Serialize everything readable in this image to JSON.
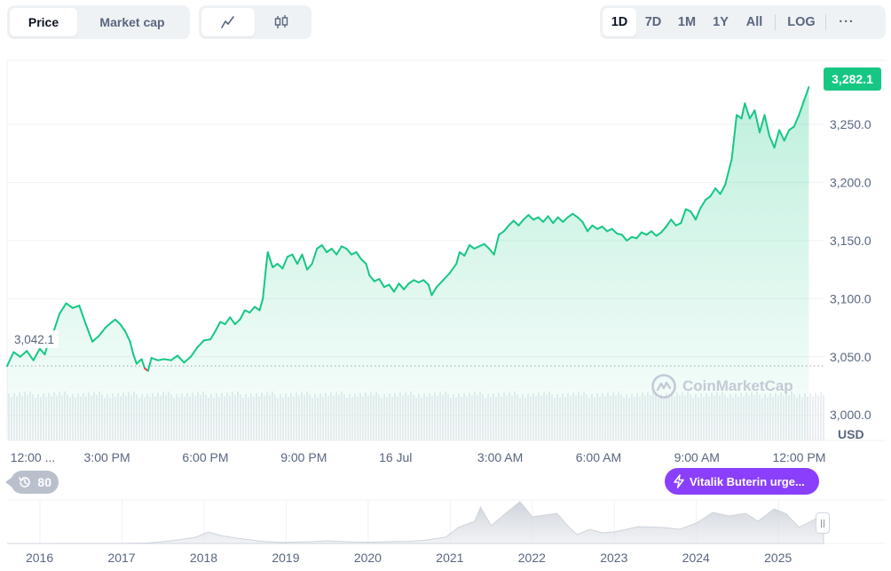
{
  "toolbar": {
    "metric_options": [
      "Price",
      "Market cap"
    ],
    "metric_selected": "Price",
    "chart_types": [
      {
        "name": "line-chart-icon",
        "selected": true
      },
      {
        "name": "candlestick-chart-icon",
        "selected": false
      }
    ],
    "ranges": [
      "1D",
      "7D",
      "1M",
      "1Y",
      "All"
    ],
    "range_selected": "1D",
    "log_label": "LOG",
    "more_label": "···"
  },
  "chart_data": {
    "type": "area",
    "currency_label": "USD",
    "last_value_label": "3,282.1",
    "open_value_label": "3,042.1",
    "open_value": 3042.1,
    "ylim": [
      2978,
      3305
    ],
    "y_ticks": [
      3000.0,
      3050.0,
      3100.0,
      3150.0,
      3200.0,
      3250.0
    ],
    "y_tick_labels": [
      "3,000.0",
      "3,050.0",
      "3,100.0",
      "3,150.0",
      "3,200.0",
      "3,250.0"
    ],
    "x_tick_labels": [
      "12:00 ...",
      "3:00 PM",
      "6:00 PM",
      "9:00 PM",
      "16 Jul",
      "3:00 AM",
      "6:00 AM",
      "9:00 AM",
      "12:00 PM"
    ],
    "x_tick_hours": [
      0,
      3,
      6,
      9,
      12,
      15,
      18,
      21,
      24
    ],
    "x_range_hours": [
      -0.1,
      24.8
    ],
    "series": [
      {
        "color_up": "#16c784",
        "color_down": "#ea3943",
        "points": [
          [
            -0.1,
            3042
          ],
          [
            0.1,
            3054
          ],
          [
            0.3,
            3050
          ],
          [
            0.5,
            3055
          ],
          [
            0.7,
            3047
          ],
          [
            0.9,
            3057
          ],
          [
            1.05,
            3052
          ],
          [
            1.15,
            3062
          ],
          [
            1.3,
            3070
          ],
          [
            1.5,
            3087
          ],
          [
            1.7,
            3096
          ],
          [
            1.9,
            3092
          ],
          [
            2.1,
            3094
          ],
          [
            2.3,
            3078
          ],
          [
            2.5,
            3063
          ],
          [
            2.7,
            3068
          ],
          [
            2.9,
            3075
          ],
          [
            3.1,
            3080
          ],
          [
            3.2,
            3082
          ],
          [
            3.35,
            3078
          ],
          [
            3.5,
            3072
          ],
          [
            3.65,
            3063
          ],
          [
            3.75,
            3052
          ],
          [
            3.85,
            3044
          ],
          [
            4.0,
            3048
          ],
          [
            4.1,
            3040
          ],
          [
            4.2,
            3038
          ],
          [
            4.3,
            3049
          ],
          [
            4.5,
            3047
          ],
          [
            4.7,
            3048
          ],
          [
            4.9,
            3047
          ],
          [
            5.1,
            3051
          ],
          [
            5.3,
            3045
          ],
          [
            5.5,
            3050
          ],
          [
            5.7,
            3058
          ],
          [
            5.9,
            3064
          ],
          [
            6.1,
            3065
          ],
          [
            6.25,
            3072
          ],
          [
            6.4,
            3080
          ],
          [
            6.55,
            3078
          ],
          [
            6.7,
            3084
          ],
          [
            6.85,
            3078
          ],
          [
            7.0,
            3082
          ],
          [
            7.15,
            3090
          ],
          [
            7.3,
            3088
          ],
          [
            7.45,
            3093
          ],
          [
            7.6,
            3090
          ],
          [
            7.7,
            3100
          ],
          [
            7.8,
            3128
          ],
          [
            7.85,
            3140
          ],
          [
            8.0,
            3127
          ],
          [
            8.15,
            3130
          ],
          [
            8.3,
            3126
          ],
          [
            8.45,
            3136
          ],
          [
            8.6,
            3138
          ],
          [
            8.75,
            3130
          ],
          [
            8.9,
            3138
          ],
          [
            9.05,
            3125
          ],
          [
            9.2,
            3130
          ],
          [
            9.35,
            3143
          ],
          [
            9.5,
            3146
          ],
          [
            9.65,
            3140
          ],
          [
            9.8,
            3143
          ],
          [
            9.95,
            3138
          ],
          [
            10.1,
            3145
          ],
          [
            10.25,
            3143
          ],
          [
            10.4,
            3138
          ],
          [
            10.55,
            3140
          ],
          [
            10.7,
            3134
          ],
          [
            10.85,
            3130
          ],
          [
            10.95,
            3120
          ],
          [
            11.1,
            3115
          ],
          [
            11.25,
            3117
          ],
          [
            11.4,
            3110
          ],
          [
            11.55,
            3112
          ],
          [
            11.7,
            3106
          ],
          [
            11.85,
            3113
          ],
          [
            12.0,
            3108
          ],
          [
            12.15,
            3113
          ],
          [
            12.3,
            3116
          ],
          [
            12.45,
            3114
          ],
          [
            12.6,
            3116
          ],
          [
            12.75,
            3112
          ],
          [
            12.85,
            3103
          ],
          [
            13.0,
            3110
          ],
          [
            13.2,
            3116
          ],
          [
            13.4,
            3122
          ],
          [
            13.6,
            3130
          ],
          [
            13.7,
            3140
          ],
          [
            13.85,
            3137
          ],
          [
            14.0,
            3146
          ],
          [
            14.15,
            3143
          ],
          [
            14.3,
            3145
          ],
          [
            14.45,
            3147
          ],
          [
            14.6,
            3143
          ],
          [
            14.75,
            3138
          ],
          [
            14.9,
            3155
          ],
          [
            15.05,
            3158
          ],
          [
            15.2,
            3163
          ],
          [
            15.35,
            3167
          ],
          [
            15.5,
            3163
          ],
          [
            15.65,
            3168
          ],
          [
            15.8,
            3172
          ],
          [
            15.95,
            3168
          ],
          [
            16.1,
            3170
          ],
          [
            16.25,
            3166
          ],
          [
            16.4,
            3171
          ],
          [
            16.55,
            3165
          ],
          [
            16.7,
            3170
          ],
          [
            16.85,
            3166
          ],
          [
            17.0,
            3170
          ],
          [
            17.15,
            3173
          ],
          [
            17.3,
            3170
          ],
          [
            17.45,
            3166
          ],
          [
            17.6,
            3158
          ],
          [
            17.75,
            3163
          ],
          [
            17.9,
            3160
          ],
          [
            18.05,
            3162
          ],
          [
            18.2,
            3158
          ],
          [
            18.35,
            3160
          ],
          [
            18.5,
            3156
          ],
          [
            18.65,
            3155
          ],
          [
            18.8,
            3150
          ],
          [
            18.95,
            3153
          ],
          [
            19.1,
            3152
          ],
          [
            19.25,
            3157
          ],
          [
            19.4,
            3155
          ],
          [
            19.55,
            3158
          ],
          [
            19.7,
            3154
          ],
          [
            19.85,
            3157
          ],
          [
            20.0,
            3162
          ],
          [
            20.15,
            3168
          ],
          [
            20.3,
            3163
          ],
          [
            20.45,
            3165
          ],
          [
            20.6,
            3177
          ],
          [
            20.75,
            3175
          ],
          [
            20.9,
            3168
          ],
          [
            21.05,
            3178
          ],
          [
            21.2,
            3185
          ],
          [
            21.35,
            3188
          ],
          [
            21.5,
            3195
          ],
          [
            21.65,
            3190
          ],
          [
            21.8,
            3198
          ],
          [
            22.0,
            3220
          ],
          [
            22.15,
            3258
          ],
          [
            22.3,
            3255
          ],
          [
            22.4,
            3268
          ],
          [
            22.55,
            3255
          ],
          [
            22.7,
            3262
          ],
          [
            22.85,
            3243
          ],
          [
            23.0,
            3258
          ],
          [
            23.15,
            3240
          ],
          [
            23.3,
            3230
          ],
          [
            23.45,
            3245
          ],
          [
            23.6,
            3236
          ],
          [
            23.75,
            3245
          ],
          [
            23.9,
            3248
          ],
          [
            24.05,
            3258
          ],
          [
            24.2,
            3270
          ],
          [
            24.35,
            3282
          ]
        ]
      }
    ]
  },
  "navigator": {
    "year_labels": [
      "2016",
      "2017",
      "2018",
      "2019",
      "2020",
      "2021",
      "2022",
      "2023",
      "2024",
      "2025"
    ],
    "year_start": 2015.6,
    "year_end": 2025.55,
    "range_max_usd": 4900,
    "price_history": [
      [
        2015.6,
        2
      ],
      [
        2016.0,
        1
      ],
      [
        2016.5,
        12
      ],
      [
        2017.0,
        10
      ],
      [
        2017.3,
        50
      ],
      [
        2017.6,
        300
      ],
      [
        2017.9,
        700
      ],
      [
        2018.05,
        1300
      ],
      [
        2018.2,
        900
      ],
      [
        2018.4,
        600
      ],
      [
        2018.7,
        250
      ],
      [
        2018.95,
        110
      ],
      [
        2019.3,
        200
      ],
      [
        2019.5,
        300
      ],
      [
        2019.8,
        180
      ],
      [
        2020.0,
        140
      ],
      [
        2020.2,
        200
      ],
      [
        2020.5,
        240
      ],
      [
        2020.7,
        380
      ],
      [
        2020.95,
        730
      ],
      [
        2021.1,
        1800
      ],
      [
        2021.3,
        2500
      ],
      [
        2021.37,
        4100
      ],
      [
        2021.5,
        2000
      ],
      [
        2021.65,
        3200
      ],
      [
        2021.85,
        4700
      ],
      [
        2022.0,
        3000
      ],
      [
        2022.3,
        3400
      ],
      [
        2022.45,
        1800
      ],
      [
        2022.55,
        1000
      ],
      [
        2022.7,
        1600
      ],
      [
        2022.85,
        1200
      ],
      [
        2023.0,
        1300
      ],
      [
        2023.3,
        1900
      ],
      [
        2023.6,
        1800
      ],
      [
        2023.8,
        1600
      ],
      [
        2024.0,
        2300
      ],
      [
        2024.2,
        3500
      ],
      [
        2024.4,
        3100
      ],
      [
        2024.6,
        3400
      ],
      [
        2024.75,
        2500
      ],
      [
        2024.95,
        3900
      ],
      [
        2025.1,
        3300
      ],
      [
        2025.25,
        1800
      ],
      [
        2025.4,
        2500
      ],
      [
        2025.55,
        3282
      ]
    ]
  },
  "badges": {
    "history_count": "80",
    "news_headline": "Vitalik Buterin urge..."
  },
  "watermark": "CoinMarketCap",
  "colors": {
    "up": "#16c784",
    "down": "#ea3943",
    "news": "#8a3ffc",
    "muted": "#58667e"
  }
}
